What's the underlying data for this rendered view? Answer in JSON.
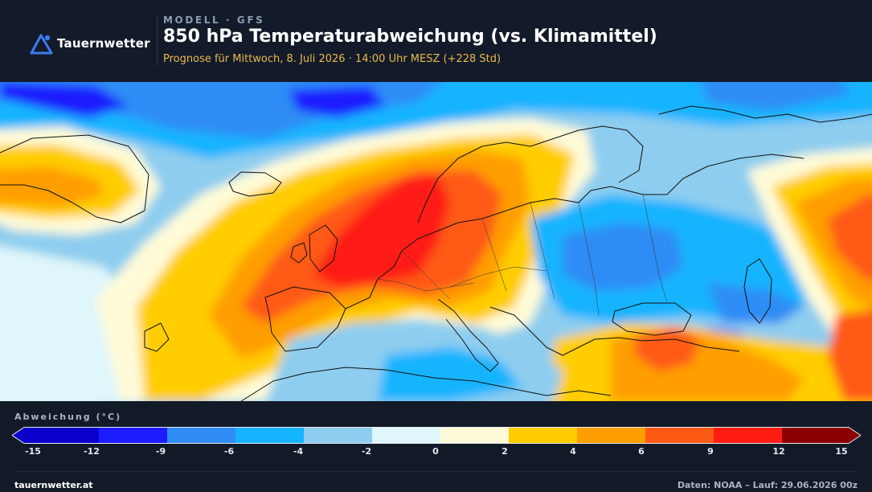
{
  "header": {
    "brand": "Tauernwetter",
    "kicker": "MODELL · GFS",
    "title": "850 hPa Temperaturabweichung (vs. Klimamittel)",
    "subtitle": "Prognose für Mittwoch, 8. Juli 2026 · 14:00 Uhr MESZ  (+228 Std)"
  },
  "map": {
    "icon": "weather-map",
    "anomaly_colors": {
      "minus15_minus12": "#0a00cc",
      "minus12_minus9": "#1c1cff",
      "minus9_minus6": "#2f8cf5",
      "minus6_minus4": "#14b4ff",
      "minus4_minus2": "#8ecdef",
      "minus2_0": "#dff6fb",
      "zero_2": "#fffbd8",
      "two_4": "#ffcd00",
      "four_6": "#ff9e00",
      "six_9": "#ff5a14",
      "nine_12": "#ff1c12",
      "twelve_15": "#8a0000"
    }
  },
  "legend": {
    "title": "Abweichung (°C)",
    "ticks": [
      "-15",
      "-12",
      "-9",
      "-6",
      "-4",
      "-2",
      "0",
      "2",
      "4",
      "6",
      "9",
      "12",
      "15"
    ]
  },
  "footer": {
    "site": "tauernwetter.at",
    "credit": "Daten: NOAA – Lauf: 29.06.2026 00z"
  }
}
